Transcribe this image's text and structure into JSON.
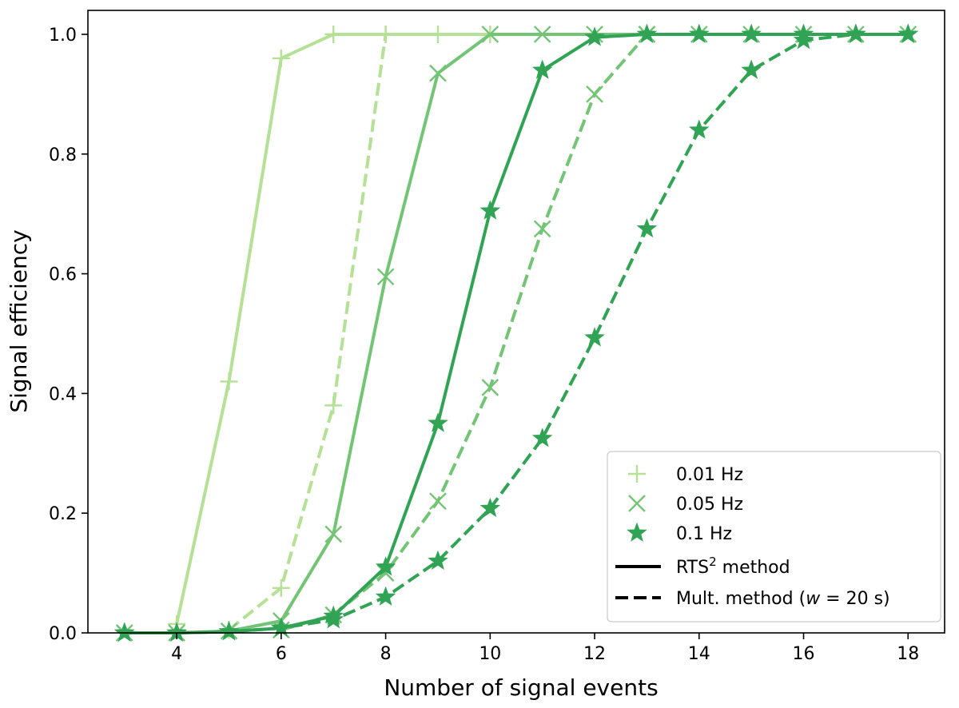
{
  "chart_data": {
    "type": "line",
    "xlabel": "Number of signal events",
    "ylabel": "Signal efficiency",
    "xlim": [
      2.3,
      18.7
    ],
    "ylim": [
      0.0,
      1.04
    ],
    "xticks": [
      4,
      6,
      8,
      10,
      12,
      14,
      16,
      18
    ],
    "xtick_labels": [
      "4",
      "6",
      "8",
      "10",
      "12",
      "14",
      "16",
      "18"
    ],
    "yticks": [
      0.0,
      0.2,
      0.4,
      0.6,
      0.8,
      1.0
    ],
    "ytick_labels": [
      "0.0",
      "0.2",
      "0.4",
      "0.6",
      "0.8",
      "1.0"
    ],
    "legend_position": "lower-right",
    "colors": {
      "light": "#b5e197",
      "mid": "#74c476",
      "dark": "#31a354"
    },
    "series": [
      {
        "rate": "0.01 Hz",
        "method": "RTS2 method",
        "color": "#b5e197",
        "marker": "plus",
        "style": "solid",
        "x": [
          4,
          5,
          6,
          7,
          8,
          9,
          10
        ],
        "y": [
          0.015,
          0.42,
          0.96,
          1.0,
          1.0,
          1.0,
          1.0
        ]
      },
      {
        "rate": "0.01 Hz",
        "method": "Mult. method",
        "color": "#b5e197",
        "marker": "plus",
        "style": "dashed",
        "x": [
          5,
          6,
          7,
          8
        ],
        "y": [
          0.005,
          0.075,
          0.38,
          1.0
        ]
      },
      {
        "rate": "0.05 Hz",
        "method": "RTS2 method",
        "color": "#74c476",
        "marker": "x",
        "style": "solid",
        "x": [
          3,
          4,
          5,
          6,
          7,
          8,
          9,
          10,
          11,
          12,
          13,
          14,
          15,
          16,
          17,
          18
        ],
        "y": [
          0.0,
          0.0,
          0.003,
          0.02,
          0.165,
          0.595,
          0.935,
          1.0,
          1.0,
          1.0,
          1.0,
          1.0,
          1.0,
          1.0,
          1.0,
          1.0
        ]
      },
      {
        "rate": "0.05 Hz",
        "method": "Mult. method",
        "color": "#74c476",
        "marker": "x",
        "style": "dashed",
        "x": [
          6,
          7,
          8,
          9,
          10,
          11,
          12,
          13
        ],
        "y": [
          0.005,
          0.03,
          0.1,
          0.22,
          0.41,
          0.675,
          0.9,
          1.0
        ]
      },
      {
        "rate": "0.1 Hz",
        "method": "RTS2 method",
        "color": "#31a354",
        "marker": "star",
        "style": "solid",
        "x": [
          3,
          4,
          5,
          6,
          7,
          8,
          9,
          10,
          11,
          12,
          13,
          14,
          15,
          16,
          17,
          18
        ],
        "y": [
          0.0,
          0.0,
          0.002,
          0.008,
          0.028,
          0.11,
          0.35,
          0.705,
          0.94,
          0.995,
          1.0,
          1.0,
          1.0,
          1.0,
          1.0,
          1.0
        ]
      },
      {
        "rate": "0.1 Hz",
        "method": "Mult. method",
        "color": "#31a354",
        "marker": "star",
        "style": "dashed",
        "x": [
          3,
          4,
          5,
          6,
          7,
          8,
          9,
          10,
          11,
          12,
          13,
          14,
          15,
          16,
          17,
          18
        ],
        "y": [
          0.0,
          0.0,
          0.002,
          0.008,
          0.022,
          0.06,
          0.12,
          0.208,
          0.325,
          0.493,
          0.675,
          0.84,
          0.94,
          0.99,
          1.0,
          1.0
        ]
      }
    ],
    "legend": [
      {
        "label": "0.01 Hz",
        "marker": "plus",
        "color": "#b5e197"
      },
      {
        "label": "0.05 Hz",
        "marker": "x",
        "color": "#74c476"
      },
      {
        "label": "0.1 Hz",
        "marker": "star",
        "color": "#31a354"
      },
      {
        "label": "RTS",
        "sup": "2",
        "label_suffix": " method",
        "line": "solid"
      },
      {
        "label": "Mult. method (",
        "italic": "w",
        "label_suffix": " = 20 s)",
        "line": "dashed"
      }
    ]
  }
}
